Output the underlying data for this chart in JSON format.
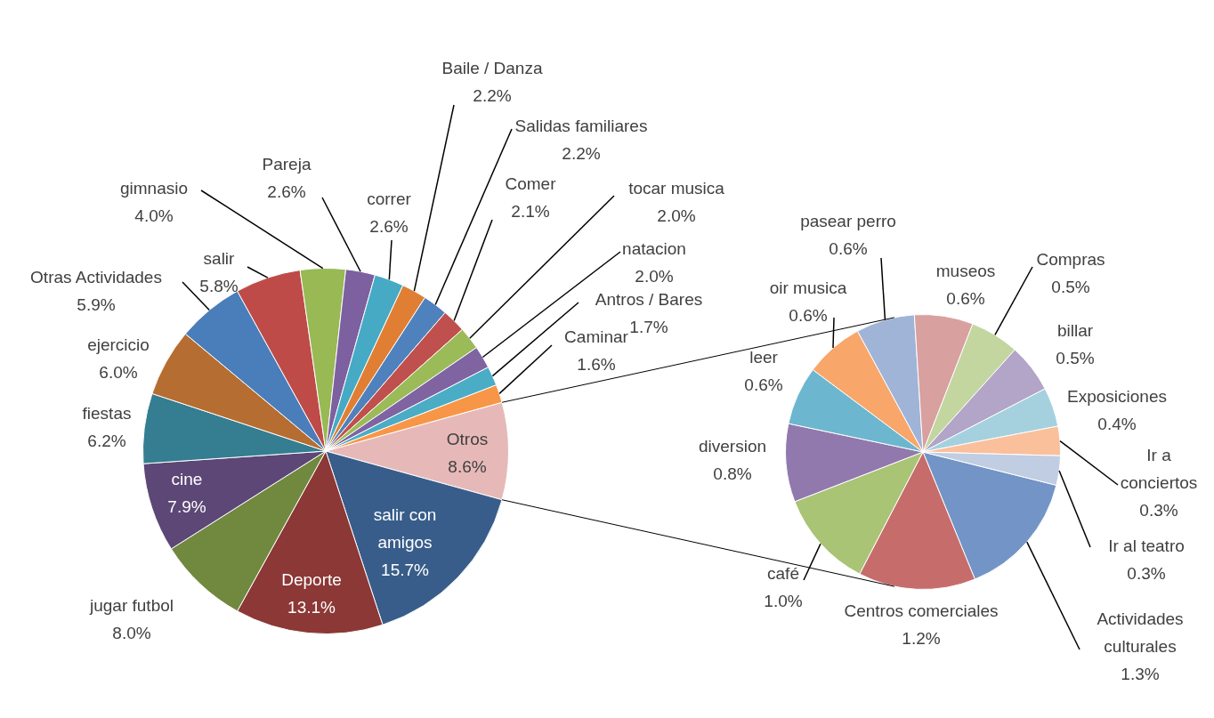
{
  "chart_data": [
    {
      "type": "pie",
      "categories": [
        "Otros",
        "salir con amigos",
        "Deporte",
        "jugar futbol",
        "cine",
        "fiestas",
        "ejercicio",
        "Otras Actividades",
        "salir",
        "gimnasio",
        "Pareja",
        "correr",
        "Baile / Danza",
        "Salidas familiares",
        "Comer",
        "tocar musica",
        "natacion",
        "Antros / Bares",
        "Caminar"
      ],
      "values": [
        8.6,
        15.7,
        13.1,
        8.0,
        7.9,
        6.2,
        6.0,
        5.9,
        5.8,
        4.0,
        2.6,
        2.6,
        2.2,
        2.2,
        2.1,
        2.0,
        2.0,
        1.7,
        1.6
      ],
      "value_labels": [
        "8.6%",
        "15.7%",
        "13.1%",
        "8.0%",
        "7.9%",
        "6.2%",
        "6.0%",
        "5.9%",
        "5.8%",
        "4.0%",
        "2.6%",
        "2.6%",
        "2.2%",
        "2.2%",
        "2.1%",
        "2.0%",
        "2.0%",
        "1.7%",
        "1.6%"
      ],
      "colors": [
        "#e6b9b8",
        "#385d8a",
        "#8c3836",
        "#71893f",
        "#5c4776",
        "#357d91",
        "#b66d31",
        "#4a7ebb",
        "#be4b48",
        "#98b954",
        "#7d60a0",
        "#46aac5",
        "#e07f34",
        "#4f81bd",
        "#c0504d",
        "#9bbb59",
        "#8064a2",
        "#4bacc6",
        "#f79646"
      ]
    },
    {
      "type": "pie",
      "categories": [
        "Actividades culturales",
        "Centros comerciales",
        "café",
        "diversion",
        "leer",
        "oir musica",
        "pasear perro",
        "museos",
        "Compras",
        "billar",
        "Exposiciones",
        "Ir a conciertos",
        "Ir al teatro"
      ],
      "values": [
        1.3,
        1.2,
        1.0,
        0.8,
        0.6,
        0.6,
        0.6,
        0.6,
        0.5,
        0.5,
        0.4,
        0.3,
        0.3
      ],
      "value_labels": [
        "1.3%",
        "1.2%",
        "1.0%",
        "0.8%",
        "0.6%",
        "0.6%",
        "0.6%",
        "0.6%",
        "0.5%",
        "0.5%",
        "0.4%",
        "0.3%",
        "0.3%"
      ],
      "colors": [
        "#7394c6",
        "#c66d6b",
        "#a9c474",
        "#9179ae",
        "#6cb7cf",
        "#f8a66a",
        "#a0b4d8",
        "#d8a09f",
        "#c3d69f",
        "#b2a5c7",
        "#a5d1de",
        "#fac09c",
        "#c0cde3"
      ]
    }
  ]
}
